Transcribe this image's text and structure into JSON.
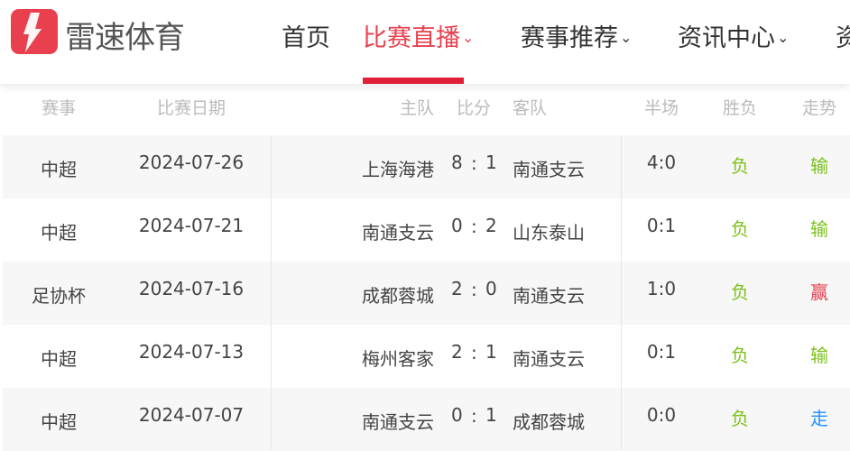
{
  "header": {
    "brand": "雷速体育",
    "nav": [
      {
        "label": "首页",
        "dropdown": false
      },
      {
        "label": "比赛直播",
        "dropdown": true,
        "active": true
      },
      {
        "label": "赛事推荐",
        "dropdown": true
      },
      {
        "label": "资讯中心",
        "dropdown": true
      },
      {
        "label": "资",
        "dropdown": false
      }
    ],
    "accent": "#e8404f"
  },
  "table": {
    "columns": [
      "赛事",
      "比赛日期",
      "主队",
      "比分",
      "客队",
      "半场",
      "胜负",
      "走势"
    ],
    "rows": [
      {
        "league": "中超",
        "date": "2024-07-26",
        "home": "上海海港",
        "score_home": "8",
        "score_away": "1",
        "away": "南通支云",
        "half": "4:0",
        "result": "负",
        "trend": "输",
        "trend_color": "#7cc21a"
      },
      {
        "league": "中超",
        "date": "2024-07-21",
        "home": "南通支云",
        "score_home": "0",
        "score_away": "2",
        "away": "山东泰山",
        "half": "0:1",
        "result": "负",
        "trend": "输",
        "trend_color": "#7cc21a"
      },
      {
        "league": "足协杯",
        "date": "2024-07-16",
        "home": "成都蓉城",
        "score_home": "2",
        "score_away": "0",
        "away": "南通支云",
        "half": "1:0",
        "result": "负",
        "trend": "赢",
        "trend_color": "#e8404f"
      },
      {
        "league": "中超",
        "date": "2024-07-13",
        "home": "梅州客家",
        "score_home": "2",
        "score_away": "1",
        "away": "南通支云",
        "half": "0:1",
        "result": "负",
        "trend": "输",
        "trend_color": "#7cc21a"
      },
      {
        "league": "中超",
        "date": "2024-07-07",
        "home": "南通支云",
        "score_home": "0",
        "score_away": "1",
        "away": "成都蓉城",
        "half": "0:0",
        "result": "负",
        "trend": "走",
        "trend_color": "#1e90ff"
      }
    ],
    "result_color": "#7cc21a"
  }
}
